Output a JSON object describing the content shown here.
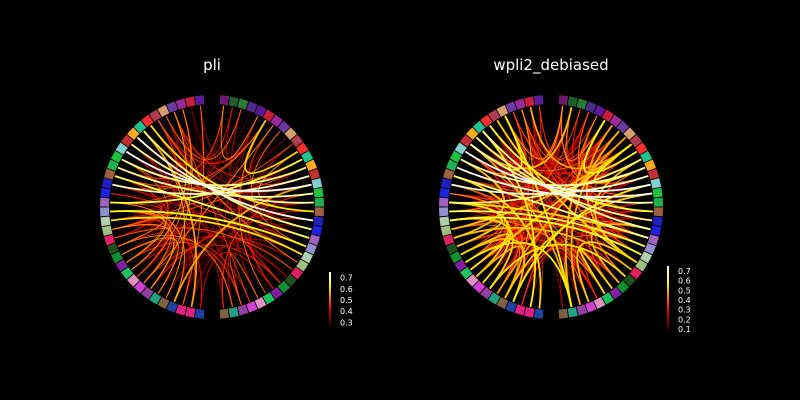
{
  "chart_data": [
    {
      "type": "connectivity-circle",
      "title": "pli",
      "n_nodes": 68,
      "colorbar": {
        "ticks": [
          "0.7",
          "0.6",
          "0.5",
          "0.4",
          "0.3"
        ],
        "vmin": 0.25,
        "vmax": 0.75,
        "colormap": "hot"
      },
      "node_colors": [
        "#6e1a6e",
        "#1f5c2e",
        "#2a7a3a",
        "#4a2a8a",
        "#5a1a9a",
        "#c81e3c",
        "#9a2a9a",
        "#6a3aa0",
        "#d4a070",
        "#b03c50",
        "#ff3030",
        "#20c090",
        "#ffaa20",
        "#c03030",
        "#80d0d0",
        "#20c040",
        "#20b050",
        "#a06040",
        "#2020c0",
        "#2020e0",
        "#a060c0",
        "#9090d0",
        "#b0d0b0",
        "#a0c080",
        "#e02060",
        "#205020",
        "#109030",
        "#8020a0",
        "#20c060",
        "#e090c0",
        "#d040d0",
        "#9040a0",
        "#20a080",
        "#806040",
        "#2040a0",
        "#e02080",
        "#e02080",
        "#2040a0",
        "#806040",
        "#20a080",
        "#9040a0",
        "#d040d0",
        "#e090c0",
        "#20c060",
        "#8020a0",
        "#109030",
        "#205020",
        "#e02060",
        "#a0c080",
        "#b0d0b0",
        "#9090d0",
        "#a060c0",
        "#2020e0",
        "#2020c0",
        "#a06040",
        "#20b050",
        "#20c040",
        "#80d0d0",
        "#c03030",
        "#ffaa20",
        "#20c090",
        "#ff3030",
        "#b03c50",
        "#d4a070",
        "#6a3aa0",
        "#9a2a9a",
        "#c81e3c",
        "#5a1a9a"
      ],
      "strong_edges": [
        [
          14,
          57,
          0.75
        ],
        [
          18,
          59,
          0.74
        ],
        [
          13,
          53,
          0.72
        ],
        [
          15,
          55,
          0.7
        ],
        [
          16,
          58,
          0.7
        ],
        [
          12,
          56,
          0.69
        ],
        [
          19,
          60,
          0.68
        ],
        [
          20,
          54,
          0.66
        ],
        [
          11,
          51,
          0.65
        ],
        [
          21,
          50,
          0.62
        ],
        [
          17,
          61,
          0.6
        ],
        [
          22,
          49,
          0.6
        ],
        [
          10,
          5,
          0.58
        ],
        [
          60,
          35,
          0.55
        ],
        [
          14,
          37,
          0.55
        ],
        [
          23,
          62,
          0.52
        ],
        [
          9,
          48,
          0.5
        ],
        [
          24,
          47,
          0.5
        ]
      ],
      "seed": 7
    },
    {
      "type": "connectivity-circle",
      "title": "wpli2_debiased",
      "n_nodes": 68,
      "colorbar": {
        "ticks": [
          "0.7",
          "0.6",
          "0.5",
          "0.4",
          "0.3",
          "0.2",
          "0.1"
        ],
        "vmin": 0.05,
        "vmax": 0.75,
        "colormap": "hot"
      },
      "node_colors": [
        "#6e1a6e",
        "#1f5c2e",
        "#2a7a3a",
        "#4a2a8a",
        "#5a1a9a",
        "#c81e3c",
        "#9a2a9a",
        "#6a3aa0",
        "#d4a070",
        "#b03c50",
        "#ff3030",
        "#20c090",
        "#ffaa20",
        "#c03030",
        "#80d0d0",
        "#20c040",
        "#20b050",
        "#a06040",
        "#2020c0",
        "#2020e0",
        "#a060c0",
        "#9090d0",
        "#b0d0b0",
        "#a0c080",
        "#e02060",
        "#205020",
        "#109030",
        "#8020a0",
        "#20c060",
        "#e090c0",
        "#d040d0",
        "#9040a0",
        "#20a080",
        "#806040",
        "#2040a0",
        "#e02080",
        "#e02080",
        "#2040a0",
        "#806040",
        "#20a080",
        "#9040a0",
        "#d040d0",
        "#e090c0",
        "#20c060",
        "#8020a0",
        "#109030",
        "#205020",
        "#e02060",
        "#a0c080",
        "#b0d0b0",
        "#9090d0",
        "#a060c0",
        "#2020e0",
        "#2020c0",
        "#a06040",
        "#20b050",
        "#20c040",
        "#80d0d0",
        "#c03030",
        "#ffaa20",
        "#20c090",
        "#ff3030",
        "#b03c50",
        "#d4a070",
        "#6a3aa0",
        "#9a2a9a",
        "#c81e3c",
        "#5a1a9a"
      ],
      "strong_edges": [
        [
          14,
          57,
          0.75
        ],
        [
          15,
          55,
          0.74
        ],
        [
          13,
          53,
          0.72
        ],
        [
          16,
          58,
          0.7
        ],
        [
          12,
          56,
          0.69
        ],
        [
          19,
          60,
          0.68
        ],
        [
          20,
          54,
          0.66
        ],
        [
          18,
          59,
          0.66
        ],
        [
          11,
          51,
          0.65
        ],
        [
          21,
          50,
          0.62
        ],
        [
          17,
          61,
          0.6
        ],
        [
          22,
          49,
          0.6
        ],
        [
          10,
          5,
          0.58
        ],
        [
          60,
          35,
          0.55
        ],
        [
          14,
          37,
          0.55
        ],
        [
          23,
          62,
          0.52
        ],
        [
          9,
          48,
          0.5
        ],
        [
          24,
          47,
          0.5
        ]
      ],
      "seed": 11
    }
  ]
}
